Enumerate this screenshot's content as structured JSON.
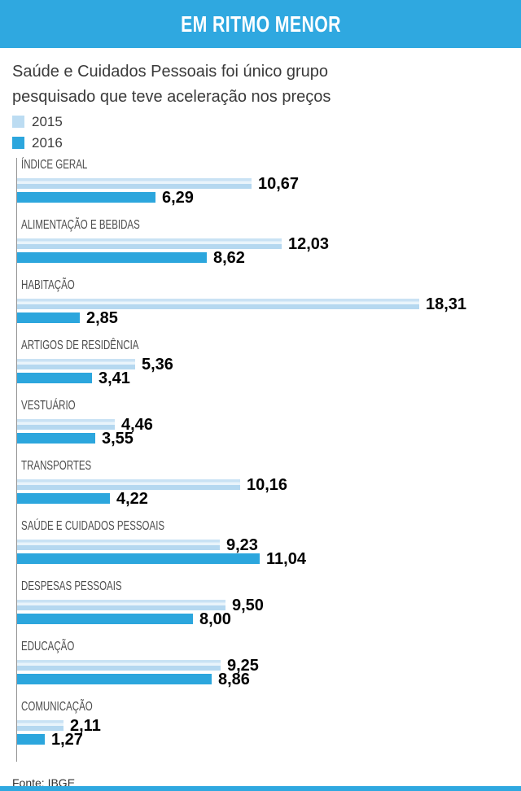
{
  "subtitle": "Saúde e Cuidados Pessoais foi único grupo pesquisado que teve aceleração nos preços",
  "source": "Fonte: IBGE",
  "colors": {
    "header_bg": "#2fa8e0",
    "bar_2015": "#bcdcf2",
    "bar_2015_gradient": [
      "#c9e2f4",
      "#e9f4fb",
      "#b5d8f0"
    ],
    "bar_2016": "#2ca6dd",
    "axis_line": "#949494",
    "label_text": "#4d4d4d",
    "subtitle_text": "#3a3a3a",
    "value_text": "#000000"
  },
  "chart_data": {
    "type": "bar",
    "orientation": "horizontal",
    "title": "EM RITMO MENOR",
    "subtitle": "Saúde e Cuidados Pessoais foi único grupo pesquisado que teve aceleração nos preços",
    "legend_position": "top-left",
    "grid": false,
    "xlim": [
      0,
      18.31
    ],
    "value_format": "comma-decimal-2",
    "categories": [
      "ÍNDICE GERAL",
      "ALIMENTAÇÃO E BEBIDAS",
      "HABITAÇÃO",
      "ARTIGOS DE RESIDÊNCIA",
      "VESTUÁRIO",
      "TRANSPORTES",
      "SAÚDE E CUIDADOS PESSOAIS",
      "DESPESAS PESSOAIS",
      "EDUCAÇÃO",
      "COMUNICAÇÃO"
    ],
    "series": [
      {
        "name": "2015",
        "values": [
          10.67,
          12.03,
          18.31,
          5.36,
          4.46,
          10.16,
          9.23,
          9.5,
          9.25,
          2.11
        ],
        "display_values": [
          "10,67",
          "12,03",
          "18,31",
          "5,36",
          "4,46",
          "10,16",
          "9,23",
          "9,50",
          "9,25",
          "2,11"
        ]
      },
      {
        "name": "2016",
        "values": [
          6.29,
          8.62,
          2.85,
          3.41,
          3.55,
          4.22,
          11.04,
          8.0,
          8.86,
          1.27
        ],
        "display_values": [
          "6,29",
          "8,62",
          "2,85",
          "3,41",
          "3,55",
          "4,22",
          "11,04",
          "8,00",
          "8,86",
          "1,27"
        ]
      }
    ],
    "source": "Fonte: IBGE"
  }
}
